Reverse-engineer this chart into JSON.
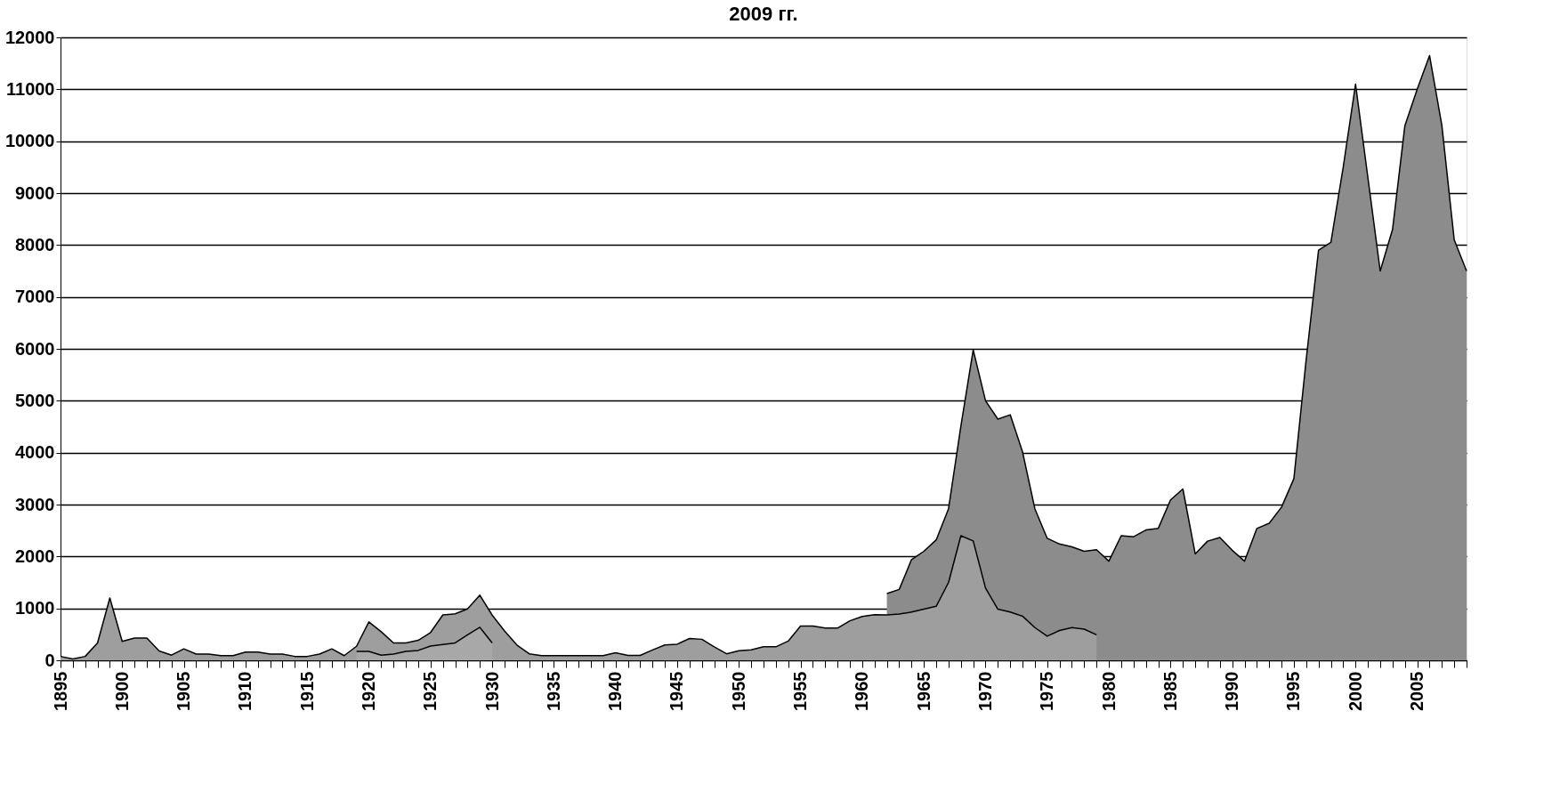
{
  "chart_data": {
    "type": "area",
    "title": "2009 гг.",
    "x": [
      1895,
      1896,
      1897,
      1898,
      1899,
      1900,
      1901,
      1902,
      1903,
      1904,
      1905,
      1906,
      1907,
      1908,
      1909,
      1910,
      1911,
      1912,
      1913,
      1914,
      1915,
      1916,
      1917,
      1918,
      1919,
      1920,
      1921,
      1922,
      1923,
      1924,
      1925,
      1926,
      1927,
      1928,
      1929,
      1930,
      1931,
      1932,
      1933,
      1934,
      1935,
      1936,
      1937,
      1938,
      1939,
      1940,
      1941,
      1942,
      1943,
      1944,
      1945,
      1946,
      1947,
      1948,
      1949,
      1950,
      1951,
      1952,
      1953,
      1954,
      1955,
      1956,
      1957,
      1958,
      1959,
      1960,
      1961,
      1962,
      1963,
      1964,
      1965,
      1966,
      1967,
      1968,
      1969,
      1970,
      1971,
      1972,
      1973,
      1974,
      1975,
      1976,
      1977,
      1978,
      1979,
      1980,
      1981,
      1982,
      1983,
      1984,
      1985,
      1986,
      1987,
      1988,
      1989,
      1990,
      1991,
      1992,
      1993,
      1994,
      1995,
      1996,
      1997,
      1998,
      1999,
      2000,
      2001,
      2002,
      2003,
      2004,
      2005,
      2006,
      2007,
      2008,
      2009
    ],
    "series": [
      {
        "color": "#8c8c8c",
        "values": [
          null,
          null,
          null,
          null,
          null,
          null,
          null,
          null,
          null,
          null,
          null,
          null,
          null,
          null,
          null,
          null,
          null,
          null,
          null,
          null,
          null,
          null,
          null,
          null,
          null,
          null,
          null,
          null,
          null,
          null,
          null,
          null,
          null,
          null,
          null,
          null,
          null,
          null,
          null,
          null,
          null,
          null,
          null,
          null,
          null,
          null,
          null,
          null,
          null,
          null,
          null,
          null,
          null,
          null,
          null,
          null,
          null,
          null,
          null,
          null,
          null,
          null,
          null,
          null,
          null,
          null,
          null,
          1285,
          1365,
          1940,
          2100,
          2320,
          2920,
          4510,
          5980,
          5000,
          4645,
          4730,
          4015,
          2920,
          2350,
          2240,
          2185,
          2100,
          2130,
          1910,
          2400,
          2380,
          2510,
          2540,
          3090,
          3300,
          2050,
          2295,
          2365,
          2120,
          1910,
          2540,
          2640,
          2950,
          3500,
          5800,
          7900,
          8050,
          9500,
          11100,
          9300,
          7500,
          8300,
          10300,
          11000,
          11650,
          10300,
          8100,
          7500
        ]
      },
      {
        "color": "#9e9e9e",
        "values": [
          75,
          25,
          75,
          335,
          1200,
          365,
          430,
          430,
          180,
          100,
          220,
          120,
          120,
          90,
          90,
          160,
          160,
          120,
          120,
          75,
          75,
          120,
          220,
          90,
          270,
          740,
          550,
          335,
          335,
          385,
          535,
          875,
          895,
          990,
          1255,
          870,
          565,
          295,
          125,
          90,
          90,
          90,
          90,
          90,
          90,
          145,
          95,
          95,
          200,
          295,
          310,
          420,
          405,
          260,
          125,
          185,
          200,
          260,
          260,
          370,
          660,
          660,
          620,
          620,
          760,
          845,
          880,
          875,
          890,
          930,
          985,
          1040,
          1500,
          2400,
          2300,
          1390,
          985,
          930,
          850,
          630,
          465,
          575,
          630,
          600,
          490,
          null,
          null,
          null,
          null,
          null,
          null,
          null,
          null,
          null,
          null,
          null,
          null,
          null,
          null,
          null,
          null,
          null,
          null,
          null,
          null,
          null,
          null,
          null,
          null,
          null,
          null,
          null,
          null,
          null,
          null
        ]
      },
      {
        "color": "#a8a8a8",
        "values": [
          null,
          null,
          null,
          null,
          null,
          null,
          null,
          null,
          null,
          null,
          null,
          null,
          null,
          null,
          null,
          null,
          null,
          null,
          null,
          null,
          null,
          null,
          null,
          null,
          170,
          170,
          100,
          120,
          170,
          190,
          275,
          305,
          335,
          490,
          635,
          335,
          null,
          null,
          null,
          null,
          null,
          null,
          null,
          null,
          null,
          null,
          null,
          null,
          null,
          null,
          null,
          null,
          null,
          null,
          null,
          null,
          null,
          null,
          null,
          null,
          null,
          null,
          null,
          null,
          null,
          null,
          null,
          null,
          null,
          null,
          null,
          null,
          null,
          null,
          null,
          null,
          null,
          null,
          null,
          null,
          null,
          null,
          null,
          null,
          null,
          null,
          null,
          null,
          null,
          null,
          null,
          null,
          null,
          null,
          null,
          null,
          null,
          null,
          null,
          null,
          null,
          null,
          null,
          null,
          null,
          null,
          null,
          null,
          null,
          null,
          null,
          null,
          null,
          null,
          null
        ]
      }
    ],
    "xlim": [
      1895,
      2009
    ],
    "xticks": [
      1895,
      {
        "value": 1896,
        "label": null
      },
      {
        "value": 1897,
        "label": null
      },
      {
        "value": 1898,
        "label": null
      },
      {
        "value": 1899,
        "label": null
      },
      1900,
      {
        "value": 1901,
        "label": null
      },
      {
        "value": 1902,
        "label": null
      },
      {
        "value": 1903,
        "label": null
      },
      {
        "value": 1904,
        "label": null
      },
      1905,
      {
        "value": 1906,
        "label": null
      },
      {
        "value": 1907,
        "label": null
      },
      {
        "value": 1908,
        "label": null
      },
      {
        "value": 1909,
        "label": null
      },
      1910,
      {
        "value": 1911,
        "label": null
      },
      {
        "value": 1912,
        "label": null
      },
      {
        "value": 1913,
        "label": null
      },
      {
        "value": 1914,
        "label": null
      },
      1915,
      {
        "value": 1916,
        "label": null
      },
      {
        "value": 1917,
        "label": null
      },
      {
        "value": 1918,
        "label": null
      },
      {
        "value": 1919,
        "label": null
      },
      1920,
      {
        "value": 1921,
        "label": null
      },
      {
        "value": 1922,
        "label": null
      },
      {
        "value": 1923,
        "label": null
      },
      {
        "value": 1924,
        "label": null
      },
      1925,
      {
        "value": 1926,
        "label": null
      },
      {
        "value": 1927,
        "label": null
      },
      {
        "value": 1928,
        "label": null
      },
      {
        "value": 1929,
        "label": null
      },
      1930,
      {
        "value": 1931,
        "label": null
      },
      {
        "value": 1932,
        "label": null
      },
      {
        "value": 1933,
        "label": null
      },
      {
        "value": 1934,
        "label": null
      },
      1935,
      {
        "value": 1936,
        "label": null
      },
      {
        "value": 1937,
        "label": null
      },
      {
        "value": 1938,
        "label": null
      },
      {
        "value": 1939,
        "label": null
      },
      1940,
      {
        "value": 1941,
        "label": null
      },
      {
        "value": 1942,
        "label": null
      },
      {
        "value": 1943,
        "label": null
      },
      {
        "value": 1944,
        "label": null
      },
      1945,
      {
        "value": 1946,
        "label": null
      },
      {
        "value": 1947,
        "label": null
      },
      {
        "value": 1948,
        "label": null
      },
      {
        "value": 1949,
        "label": null
      },
      1950,
      {
        "value": 1951,
        "label": null
      },
      {
        "value": 1952,
        "label": null
      },
      {
        "value": 1953,
        "label": null
      },
      {
        "value": 1954,
        "label": null
      },
      1955,
      {
        "value": 1956,
        "label": null
      },
      {
        "value": 1957,
        "label": null
      },
      {
        "value": 1958,
        "label": null
      },
      {
        "value": 1959,
        "label": null
      },
      1960,
      {
        "value": 1961,
        "label": null
      },
      {
        "value": 1962,
        "label": null
      },
      {
        "value": 1963,
        "label": null
      },
      {
        "value": 1964,
        "label": null
      },
      1965,
      {
        "value": 1966,
        "label": null
      },
      {
        "value": 1967,
        "label": null
      },
      {
        "value": 1968,
        "label": null
      },
      {
        "value": 1969,
        "label": null
      },
      1970,
      {
        "value": 1971,
        "label": null
      },
      {
        "value": 1972,
        "label": null
      },
      {
        "value": 1973,
        "label": null
      },
      {
        "value": 1974,
        "label": null
      },
      1975,
      {
        "value": 1976,
        "label": null
      },
      {
        "value": 1977,
        "label": null
      },
      {
        "value": 1978,
        "label": null
      },
      {
        "value": 1979,
        "label": null
      },
      1980,
      {
        "value": 1981,
        "label": null
      },
      {
        "value": 1982,
        "label": null
      },
      {
        "value": 1983,
        "label": null
      },
      {
        "value": 1984,
        "label": null
      },
      1985,
      {
        "value": 1986,
        "label": null
      },
      {
        "value": 1987,
        "label": null
      },
      {
        "value": 1988,
        "label": null
      },
      {
        "value": 1989,
        "label": null
      },
      1990,
      {
        "value": 1991,
        "label": null
      },
      {
        "value": 1992,
        "label": null
      },
      {
        "value": 1993,
        "label": null
      },
      {
        "value": 1994,
        "label": null
      },
      1995,
      {
        "value": 1996,
        "label": null
      },
      {
        "value": 1997,
        "label": null
      },
      {
        "value": 1998,
        "label": null
      },
      {
        "value": 1999,
        "label": null
      },
      2000,
      {
        "value": 2001,
        "label": null
      },
      {
        "value": 2002,
        "label": null
      },
      {
        "value": 2003,
        "label": null
      },
      {
        "value": 2004,
        "label": null
      },
      2005,
      {
        "value": 2006,
        "label": null
      },
      {
        "value": 2007,
        "label": null
      },
      {
        "value": 2008,
        "label": null
      },
      {
        "value": 2009,
        "label": null
      }
    ],
    "ylim": [
      0,
      12000
    ],
    "yticks": [
      0,
      1000,
      2000,
      3000,
      4000,
      5000,
      6000,
      7000,
      8000,
      9000,
      10000,
      11000,
      12000
    ],
    "grid": "y",
    "line_style": "solid"
  }
}
